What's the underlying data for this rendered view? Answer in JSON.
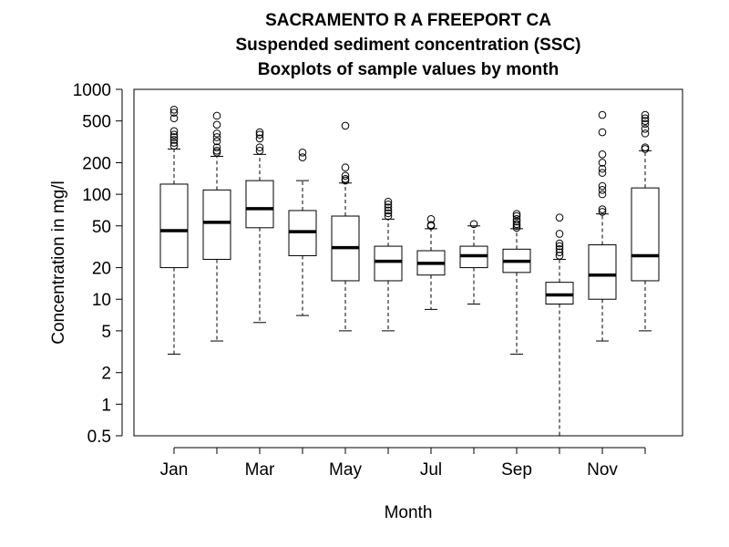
{
  "chart_data": {
    "type": "boxplot",
    "title": [
      "SACRAMENTO R A FREEPORT CA",
      "Suspended sediment concentration (SSC)",
      "Boxplots of sample values by month"
    ],
    "xlabel": "Month",
    "ylabel": "Concentration in mg/l",
    "yscale": "log",
    "ylim": [
      0.5,
      1000
    ],
    "yticks": [
      {
        "value": 1000,
        "label": "1000"
      },
      {
        "value": 500,
        "label": "500"
      },
      {
        "value": 200,
        "label": "200"
      },
      {
        "value": 100,
        "label": "100"
      },
      {
        "value": 50,
        "label": "50"
      },
      {
        "value": 20,
        "label": "20"
      },
      {
        "value": 10,
        "label": "10"
      },
      {
        "value": 5,
        "label": "5"
      },
      {
        "value": 2,
        "label": "2"
      },
      {
        "value": 1,
        "label": "1"
      },
      {
        "value": 0.5,
        "label": "0.5"
      }
    ],
    "xtick_labels": [
      {
        "month": 1,
        "label": "Jan"
      },
      {
        "month": 3,
        "label": "Mar"
      },
      {
        "month": 5,
        "label": "May"
      },
      {
        "month": 7,
        "label": "Jul"
      },
      {
        "month": 9,
        "label": "Sep"
      },
      {
        "month": 11,
        "label": "Nov"
      }
    ],
    "boxes": [
      {
        "month": 1,
        "whisker_low": 3,
        "q1": 20,
        "median": 45,
        "q3": 125,
        "whisker_high": 270,
        "outliers": [
          640,
          600,
          530,
          400,
          370,
          350,
          330,
          310,
          290
        ]
      },
      {
        "month": 2,
        "whisker_low": 4,
        "q1": 24,
        "median": 54,
        "q3": 110,
        "whisker_high": 230,
        "outliers": [
          560,
          460,
          380,
          350,
          320,
          280,
          260,
          250
        ]
      },
      {
        "month": 3,
        "whisker_low": 6,
        "q1": 48,
        "median": 73,
        "q3": 135,
        "whisker_high": 240,
        "outliers": [
          390,
          370,
          340,
          280,
          260
        ]
      },
      {
        "month": 4,
        "whisker_low": 7,
        "q1": 26,
        "median": 44,
        "q3": 70,
        "whisker_high": 135,
        "outliers": [
          250,
          225
        ]
      },
      {
        "month": 5,
        "whisker_low": 5,
        "q1": 15,
        "median": 31,
        "q3": 62,
        "whisker_high": 128,
        "outliers": [
          450,
          180,
          150,
          140,
          135
        ]
      },
      {
        "month": 6,
        "whisker_low": 5,
        "q1": 15,
        "median": 23,
        "q3": 32,
        "whisker_high": 58,
        "outliers": [
          85,
          80,
          75,
          70,
          66,
          62
        ]
      },
      {
        "month": 7,
        "whisker_low": 8,
        "q1": 17,
        "median": 22,
        "q3": 29,
        "whisker_high": 47,
        "outliers": [
          58,
          51,
          50
        ]
      },
      {
        "month": 8,
        "whisker_low": 9,
        "q1": 20,
        "median": 26,
        "q3": 32,
        "whisker_high": 50,
        "outliers": [
          52
        ]
      },
      {
        "month": 9,
        "whisker_low": 3,
        "q1": 18,
        "median": 23,
        "q3": 30,
        "whisker_high": 47,
        "outliers": [
          65,
          62,
          58,
          55,
          52,
          50,
          48
        ]
      },
      {
        "month": 10,
        "whisker_low": 0.5,
        "q1": 9,
        "median": 11,
        "q3": 14.5,
        "whisker_high": 24,
        "outliers": [
          60,
          42,
          34,
          32,
          30,
          28,
          26
        ]
      },
      {
        "month": 11,
        "whisker_low": 4,
        "q1": 10,
        "median": 17,
        "q3": 33,
        "whisker_high": 65,
        "outliers": [
          570,
          390,
          240,
          200,
          175,
          160,
          120,
          110,
          100,
          72,
          68
        ]
      },
      {
        "month": 12,
        "whisker_low": 5,
        "q1": 15,
        "median": 26,
        "q3": 115,
        "whisker_high": 260,
        "outliers": [
          570,
          530,
          500,
          470,
          420,
          380,
          280,
          270
        ]
      }
    ],
    "grid": false,
    "colors": {
      "box_fill": "#ffffff",
      "stroke": "#000000"
    }
  }
}
